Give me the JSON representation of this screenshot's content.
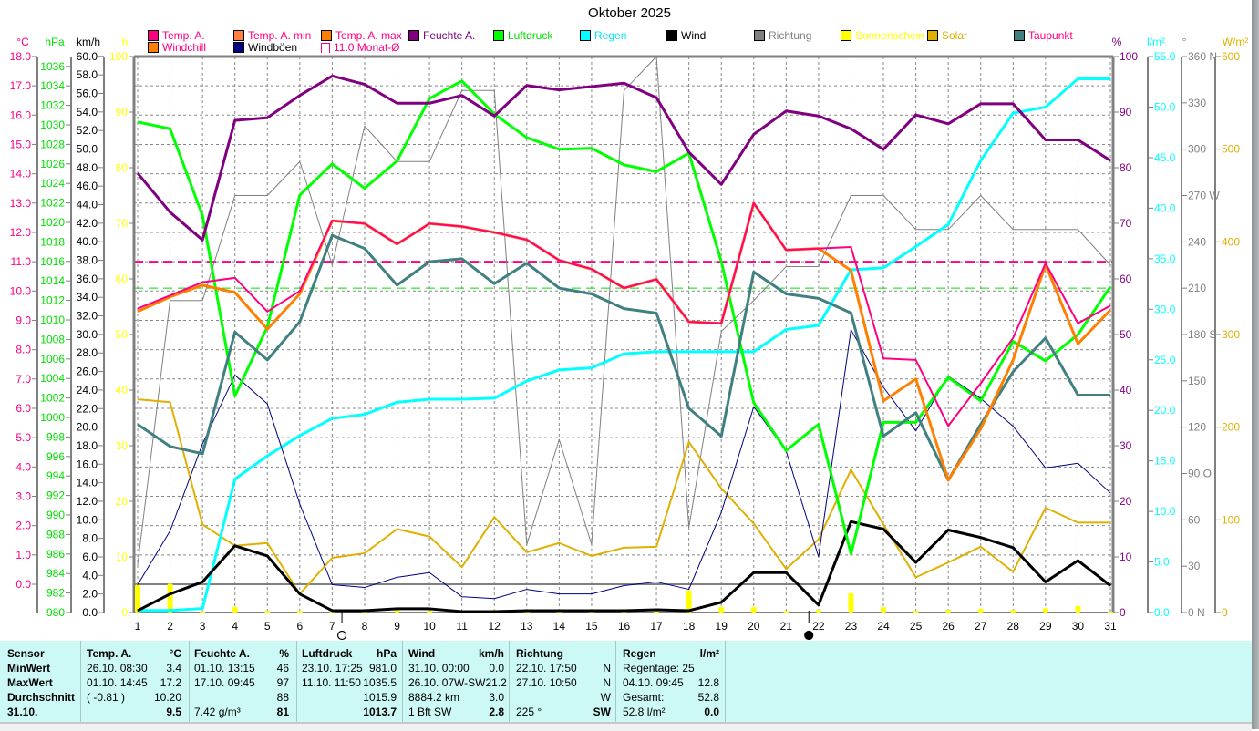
{
  "title": "Oktober 2025",
  "legend": [
    {
      "label": "Temp. A.",
      "swatch": "#ff0080",
      "text": "#ff0080"
    },
    {
      "label": "Temp. A. min",
      "swatch": "#ff8040",
      "text": "#ff0080"
    },
    {
      "label": "Temp. A. max",
      "swatch": "#ff8000",
      "text": "#ff0080"
    },
    {
      "label": "Feuchte A.",
      "swatch": "#800080",
      "text": "#800080"
    },
    {
      "label": "Luftdruck",
      "swatch": "#00ff00",
      "text": "#00e000"
    },
    {
      "label": "Regen",
      "swatch": "#00ffff",
      "text": "#00e8f0"
    },
    {
      "label": "Wind",
      "swatch": "#000000",
      "text": "#000000"
    },
    {
      "label": "Richtung",
      "swatch": "#808080",
      "text": "#808080"
    },
    {
      "label": "Sonnenschein",
      "swatch": "#ffff00",
      "text": "#ffff00"
    },
    {
      "label": "Solar",
      "swatch": "#e0b000",
      "text": "#e0b000"
    },
    {
      "label": "Taupunkt",
      "swatch": "#408080",
      "text": "#ff0080"
    },
    {
      "label": "Windchill",
      "swatch": "#ff8000",
      "text": "#ff0080"
    },
    {
      "label": "Windböen",
      "swatch": "#000080",
      "text": "#000000"
    },
    {
      "label": "11.0 Monat-Ø",
      "swatch": "outline",
      "text": "#ff0080"
    }
  ],
  "chart_data": {
    "type": "line",
    "title": "Oktober 2025",
    "x": [
      1,
      2,
      3,
      4,
      5,
      6,
      7,
      8,
      9,
      10,
      11,
      12,
      13,
      14,
      15,
      16,
      17,
      18,
      19,
      20,
      21,
      22,
      23,
      24,
      25,
      26,
      27,
      28,
      29,
      30,
      31
    ],
    "xlim": [
      1,
      31
    ],
    "grid": true,
    "legend_placement": "top",
    "axes": [
      {
        "id": "temp",
        "unit": "°C",
        "side": "left",
        "color": "#ff0080",
        "ylim": [
          -1,
          18
        ],
        "ticks": [
          "0.0",
          "1.0",
          "2.0",
          "3.0",
          "4.0",
          "5.0",
          "6.0",
          "7.0",
          "8.0",
          "9.0",
          "10.0",
          "11.0",
          "12.0",
          "13.0",
          "14.0",
          "15.0",
          "16.0",
          "17.0",
          "18.0"
        ]
      },
      {
        "id": "hpa",
        "unit": "hPa",
        "side": "left",
        "color": "#00e000",
        "ylim": [
          980,
          1037
        ],
        "ticks": [
          "980",
          "982",
          "984",
          "986",
          "988",
          "990",
          "992",
          "994",
          "996",
          "998",
          "1000",
          "1002",
          "1004",
          "1006",
          "1008",
          "1010",
          "1012",
          "1014",
          "1016",
          "1018",
          "1020",
          "1022",
          "1024",
          "1026",
          "1028",
          "1030",
          "1032",
          "1034",
          "1036"
        ]
      },
      {
        "id": "kmh",
        "unit": "km/h",
        "side": "left",
        "color": "#000000",
        "ylim": [
          0,
          60
        ],
        "ticks": [
          "0.0",
          "2.0",
          "4.0",
          "6.0",
          "8.0",
          "10.0",
          "12.0",
          "14.0",
          "16.0",
          "18.0",
          "20.0",
          "22.0",
          "24.0",
          "26.0",
          "28.0",
          "30.0",
          "32.0",
          "34.0",
          "36.0",
          "38.0",
          "40.0",
          "42.0",
          "44.0",
          "46.0",
          "48.0",
          "50.0",
          "52.0",
          "54.0",
          "56.0",
          "58.0",
          "60.0"
        ]
      },
      {
        "id": "h",
        "unit": "h",
        "side": "left",
        "color": "#ffff00",
        "ylim": [
          0,
          100
        ],
        "ticks": [
          "0",
          "10",
          "20",
          "30",
          "40",
          "50",
          "60",
          "70",
          "80",
          "90",
          "100"
        ]
      },
      {
        "id": "pct",
        "unit": "%",
        "side": "right",
        "color": "#800080",
        "ylim": [
          0,
          100
        ],
        "ticks": [
          "0",
          "10",
          "20",
          "30",
          "40",
          "50",
          "60",
          "70",
          "80",
          "90",
          "100"
        ]
      },
      {
        "id": "rain",
        "unit": "l/m²",
        "side": "right",
        "color": "#00ffff",
        "ylim": [
          0,
          55
        ],
        "ticks": [
          "0.0",
          "5.0",
          "10.0",
          "15.0",
          "20.0",
          "25.0",
          "30.0",
          "35.0",
          "40.0",
          "45.0",
          "50.0",
          "55.0"
        ]
      },
      {
        "id": "deg",
        "unit": "°",
        "side": "right",
        "color": "#808080",
        "ylim": [
          0,
          360
        ],
        "ticks": [
          "0 N",
          "30",
          "60",
          "90 O",
          "120",
          "150",
          "180 S",
          "210",
          "240",
          "270 W",
          "300",
          "330",
          "360 N"
        ]
      },
      {
        "id": "solar",
        "unit": "W/m²",
        "side": "right",
        "color": "#e0b000",
        "ylim": [
          0,
          600
        ],
        "ticks": [
          "0",
          "100",
          "200",
          "300",
          "400",
          "500",
          "600"
        ]
      }
    ],
    "reference_lines": [
      {
        "name": "Monat-Ø Temp",
        "axis": "temp",
        "value": 11.0,
        "color": "#ff0080"
      },
      {
        "name": "Luftdruck-Ø",
        "axis": "temp",
        "value": 10.1,
        "color": "#00e000"
      }
    ],
    "moon_phases": [
      {
        "phase": "full",
        "day": 7.3
      },
      {
        "phase": "new",
        "day": 21.7
      }
    ],
    "series": [
      {
        "name": "Sonnenschein",
        "type": "bar",
        "axis": "h",
        "color": "#ffff00",
        "values": [
          5,
          5.2,
          0.2,
          1,
          0.3,
          0.3,
          0.2,
          0.2,
          0.5,
          0.3,
          0.2,
          0.5,
          0.2,
          0.2,
          0.2,
          0.2,
          0.3,
          4,
          1,
          1,
          0.3,
          0.5,
          3.5,
          1,
          0.3,
          0.5,
          0.7,
          0.5,
          0.8,
          1.2,
          0.2
        ]
      },
      {
        "name": "Richtung",
        "axis": "deg",
        "color": "#808080",
        "values": [
          31,
          202,
          202,
          270,
          270,
          292,
          225,
          315,
          292,
          292,
          338,
          338,
          44,
          112,
          44,
          338,
          360,
          55,
          182,
          202,
          224,
          224,
          270,
          270,
          248,
          248,
          270,
          248,
          248,
          248,
          225
        ]
      },
      {
        "name": "Solar",
        "axis": "solar",
        "color": "#e0b000",
        "values": [
          230,
          227,
          95,
          72,
          75,
          20,
          59,
          64,
          90,
          82,
          49,
          103,
          65,
          75,
          61,
          70,
          71,
          184,
          134,
          96,
          47,
          79,
          154,
          95,
          38,
          54,
          71,
          44,
          113,
          97,
          97
        ]
      },
      {
        "name": "Regen",
        "axis": "rain",
        "color": "#00ffff",
        "values": [
          0.2,
          0.2,
          0.4,
          13.2,
          15.5,
          17.5,
          19.2,
          19.6,
          20.8,
          21.1,
          21.1,
          21.2,
          22.9,
          24.0,
          24.2,
          25.6,
          25.8,
          25.8,
          25.8,
          25.8,
          28.0,
          28.4,
          33.9,
          34.1,
          36.2,
          38.4,
          44.7,
          49.4,
          50.0,
          52.8,
          52.8
        ]
      },
      {
        "name": "Windböen",
        "axis": "kmh",
        "color": "#000080",
        "values": [
          3.0,
          8.8,
          18.2,
          25.6,
          22.5,
          11.7,
          3.0,
          2.7,
          3.8,
          4.3,
          1.7,
          1.5,
          2.5,
          2.0,
          2.0,
          2.9,
          3.3,
          2.5,
          10.8,
          22.2,
          17.4,
          6.0,
          30.5,
          24.3,
          19.6,
          25.5,
          23.1,
          20.1,
          15.6,
          16.1,
          12.9
        ]
      },
      {
        "name": "Wind",
        "axis": "kmh",
        "color": "#000000",
        "values": [
          0.2,
          2.0,
          3.3,
          7.2,
          6.1,
          2.0,
          0.2,
          0.2,
          0.4,
          0.4,
          0.1,
          0.1,
          0.2,
          0.2,
          0.2,
          0.2,
          0.3,
          0.2,
          1.1,
          4.3,
          4.3,
          0.8,
          9.8,
          9.0,
          5.4,
          8.9,
          8.1,
          7.0,
          3.3,
          5.6,
          2.9
        ]
      },
      {
        "name": "Luftdruck",
        "axis": "hpa",
        "color": "#00ff00",
        "values": [
          1030.3,
          1029.6,
          1020.7,
          1002.2,
          1009.3,
          1022.8,
          1026.0,
          1023.5,
          1026.3,
          1032.7,
          1034.5,
          1031.1,
          1028.7,
          1027.5,
          1027.6,
          1025.9,
          1025.2,
          1027.1,
          1016.0,
          1001.5,
          996.6,
          999.3,
          986.0,
          999.5,
          999.5,
          1004.1,
          1001.7,
          1007.8,
          1005.8,
          1008.5,
          1013.4
        ]
      },
      {
        "name": "Feuchte A.",
        "axis": "pct",
        "color": "#800080",
        "values": [
          79,
          72,
          67,
          88.5,
          89,
          93,
          96.5,
          95,
          91.6,
          91.6,
          93,
          89.3,
          94.8,
          94,
          94.6,
          95.2,
          92.6,
          82.8,
          77,
          86,
          90.2,
          89.3,
          87,
          83.3,
          89.5,
          87.9,
          91.5,
          91.5,
          85,
          85,
          81.3
        ]
      },
      {
        "name": "Taupunkt",
        "axis": "temp",
        "color": "#408080",
        "values": [
          5.45,
          4.7,
          4.45,
          8.6,
          7.65,
          8.95,
          11.9,
          11.45,
          10.2,
          11.0,
          11.1,
          10.25,
          10.95,
          10.1,
          9.9,
          9.4,
          9.25,
          6.0,
          5.05,
          10.65,
          9.9,
          9.75,
          9.25,
          5.05,
          5.85,
          3.55,
          5.45,
          7.25,
          8.4,
          6.45,
          6.45
        ]
      },
      {
        "name": "Windchill",
        "axis": "temp",
        "color": "#ff8000",
        "values": [
          9.3,
          9.8,
          10.2,
          9.95,
          8.7,
          9.9,
          12.4,
          12.3,
          11.6,
          12.3,
          12.2,
          12.0,
          11.75,
          11.05,
          10.75,
          10.1,
          10.4,
          8.95,
          8.9,
          13.0,
          11.4,
          11.45,
          10.7,
          6.25,
          7.0,
          3.55,
          5.3,
          7.65,
          10.9,
          8.2,
          9.35
        ]
      },
      {
        "name": "Temp. A.",
        "axis": "temp",
        "color": "#ff0080",
        "values": [
          9.4,
          9.85,
          10.3,
          10.45,
          9.3,
          10.0,
          12.4,
          12.3,
          11.6,
          12.3,
          12.2,
          12.0,
          11.75,
          11.05,
          10.75,
          10.1,
          10.4,
          8.95,
          8.9,
          13.0,
          11.4,
          11.45,
          11.5,
          7.7,
          7.65,
          5.4,
          6.85,
          8.4,
          10.95,
          8.9,
          9.5
        ]
      }
    ]
  },
  "table": {
    "cols": [
      {
        "rows": [
          [
            "Sensor",
            ""
          ],
          [
            "MinWert",
            ""
          ],
          [
            "MaxWert",
            ""
          ],
          [
            "Durchschnitt",
            ""
          ],
          [
            "31.10.",
            ""
          ]
        ]
      },
      {
        "rows": [
          [
            "Temp. A.",
            "°C"
          ],
          [
            "26.10.  08:30",
            "3.4"
          ],
          [
            "01.10.  14:45",
            "17.2"
          ],
          [
            "( -0.81 )",
            "10.20"
          ],
          [
            "",
            "9.5"
          ]
        ]
      },
      {
        "rows": [
          [
            "Feuchte A.",
            "%"
          ],
          [
            "01.10.  13:15",
            "46"
          ],
          [
            "17.10.  09:45",
            "97"
          ],
          [
            "",
            "88"
          ],
          [
            "7.42 g/m³",
            "81"
          ]
        ]
      },
      {
        "rows": [
          [
            "Luftdruck",
            "hPa"
          ],
          [
            "23.10.  17:25",
            "981.0"
          ],
          [
            "11.10.  11:50",
            "1035.5"
          ],
          [
            "",
            "1015.9"
          ],
          [
            "",
            "1013.7"
          ]
        ]
      },
      {
        "rows": [
          [
            "Wind",
            "km/h"
          ],
          [
            "31.10.  00:00",
            "0.0"
          ],
          [
            "26.10.  07W-SW",
            "21.2"
          ],
          [
            "8884.2 km",
            "3.0"
          ],
          [
            "1 Bft SW",
            "2.8"
          ]
        ]
      },
      {
        "rows": [
          [
            "Richtung",
            ""
          ],
          [
            "22.10.  17:50",
            "N"
          ],
          [
            "27.10.  10:50",
            "N"
          ],
          [
            "",
            "W"
          ],
          [
            "225 °",
            "SW"
          ]
        ]
      },
      {
        "rows": [
          [
            "Regen",
            "l/m²"
          ],
          [
            "Regentage: 25",
            ""
          ],
          [
            "04.10.  09:45",
            "12.8"
          ],
          [
            "Gesamt:",
            "52.8"
          ],
          [
            "52.8 l/m²",
            "0.0"
          ]
        ]
      }
    ]
  }
}
